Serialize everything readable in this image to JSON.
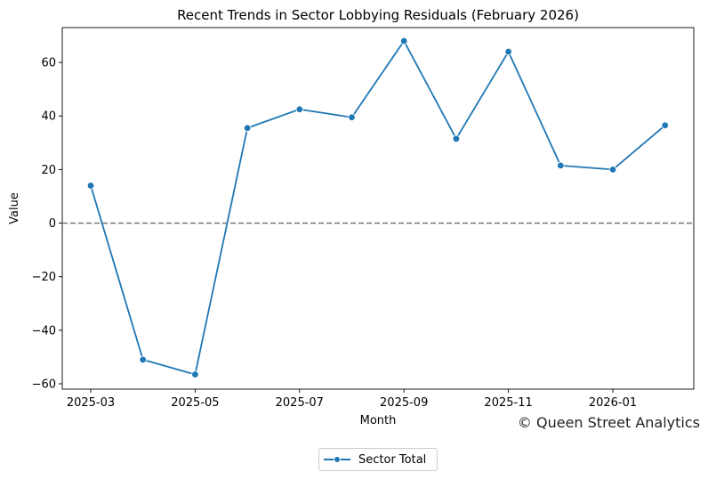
{
  "chart_data": {
    "type": "line",
    "title": "Recent Trends in Sector Lobbying Residuals (February 2026)",
    "xlabel": "Month",
    "ylabel": "Value",
    "x": [
      "2025-03",
      "2025-04",
      "2025-05",
      "2025-06",
      "2025-07",
      "2025-08",
      "2025-09",
      "2025-10",
      "2025-11",
      "2025-12",
      "2026-01",
      "2026-02"
    ],
    "series": [
      {
        "name": "Sector Total",
        "values": [
          14,
          -51,
          -56.5,
          35.5,
          42.5,
          39.5,
          68,
          31.5,
          64,
          21.5,
          20,
          36.5
        ],
        "color": "#1f77b4"
      }
    ],
    "ylim": [
      -62,
      73
    ],
    "yticks": [
      -60,
      -40,
      -20,
      0,
      20,
      40,
      60
    ],
    "xticks": [
      "2025-03",
      "2025-05",
      "2025-07",
      "2025-09",
      "2025-11",
      "2026-01"
    ],
    "reference_line": {
      "y": 0,
      "style": "dashed",
      "color": "#808080"
    },
    "grid": false,
    "legend_position": "bottom-center"
  },
  "credit": "© Queen Street Analytics"
}
